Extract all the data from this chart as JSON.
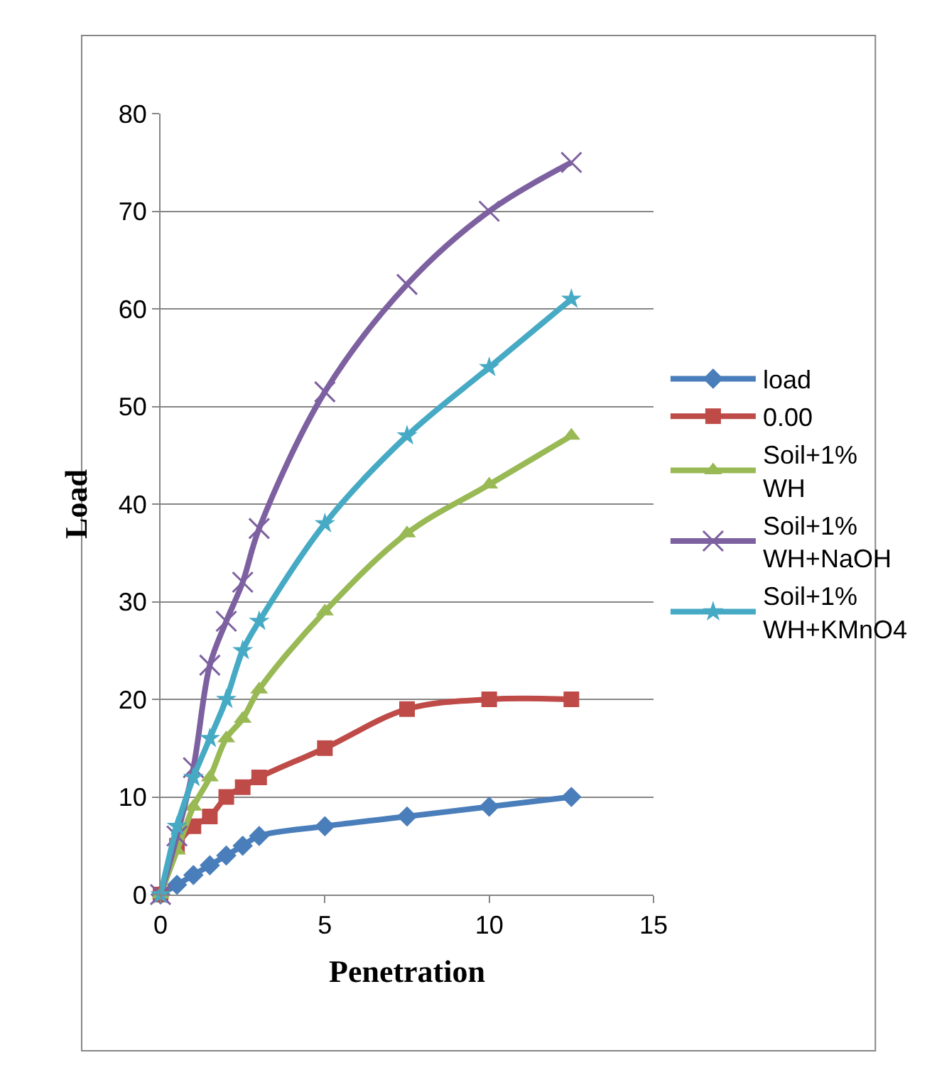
{
  "chart_data": {
    "type": "line",
    "xlabel": "Penetration",
    "ylabel": "Load",
    "x": [
      0,
      0.5,
      1,
      1.5,
      2,
      2.5,
      3,
      5,
      7.5,
      10,
      12.5
    ],
    "series": [
      {
        "name": "load",
        "color": "#4a7ebb",
        "marker": "diamond",
        "values": [
          0,
          1,
          2,
          3,
          4,
          5,
          6,
          7,
          8,
          9,
          10
        ]
      },
      {
        "name": "0.00",
        "color": "#be4b48",
        "marker": "square",
        "values": [
          0,
          5,
          7,
          8,
          10,
          11,
          12,
          15,
          19,
          20,
          20
        ]
      },
      {
        "name": "Soil+1% WH",
        "color": "#98b954",
        "marker": "triangle",
        "values": [
          0,
          4.5,
          9,
          12,
          16,
          18,
          21,
          29,
          37,
          42,
          47
        ]
      },
      {
        "name": "Soil+1% WH+NaOH",
        "color": "#7d60a0",
        "marker": "cross",
        "values": [
          0,
          6,
          13,
          23.5,
          28,
          32,
          37.5,
          51.5,
          62.5,
          70,
          75
        ]
      },
      {
        "name": "Soil+1% WH+KMnO4",
        "color": "#46aac5",
        "marker": "star",
        "values": [
          0,
          7,
          12,
          16,
          20,
          25,
          28,
          38,
          47,
          54,
          61
        ]
      }
    ],
    "xlim": [
      0,
      15
    ],
    "xticks": [
      0,
      5,
      10,
      15
    ],
    "ylim": [
      0,
      80
    ],
    "yticks": [
      0,
      10,
      20,
      30,
      40,
      50,
      60,
      70,
      80
    ],
    "grid": "y",
    "legend": "right"
  }
}
